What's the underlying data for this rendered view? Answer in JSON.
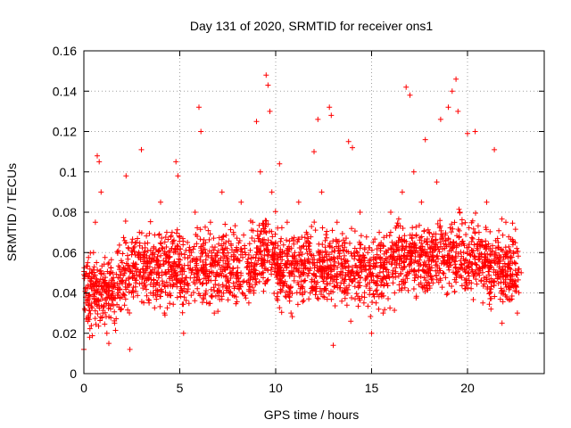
{
  "chart_data": {
    "type": "scatter",
    "title": "Day 131 of 2020, SRMTID for receiver ons1",
    "xlabel": "GPS time / hours",
    "ylabel": "SRMTID / TECUs",
    "xlim": [
      0,
      24
    ],
    "ylim": [
      0,
      0.16
    ],
    "xticks": [
      0,
      5,
      10,
      15,
      20
    ],
    "xtick_labels": [
      "0",
      "5",
      "10",
      "15",
      "20"
    ],
    "yticks": [
      0,
      0.02,
      0.04,
      0.06,
      0.08,
      0.1,
      0.12,
      0.14,
      0.16
    ],
    "ytick_labels": [
      "0",
      "0.02",
      "0.04",
      "0.06",
      "0.08",
      "0.1",
      "0.12",
      "0.14",
      "0.16"
    ],
    "grid": true,
    "marker": "+",
    "series": [
      {
        "name": "SRMTID",
        "color": "#ff0000",
        "points": [
          [
            0.0,
            0.012
          ],
          [
            0.1,
            0.035
          ],
          [
            0.2,
            0.055
          ],
          [
            0.3,
            0.018
          ],
          [
            0.4,
            0.042
          ],
          [
            0.5,
            0.06
          ],
          [
            0.6,
            0.075
          ],
          [
            0.7,
            0.108
          ],
          [
            0.8,
            0.105
          ],
          [
            0.9,
            0.09
          ],
          [
            1.0,
            0.03
          ],
          [
            1.1,
            0.045
          ],
          [
            1.2,
            0.02
          ],
          [
            1.3,
            0.015
          ],
          [
            1.4,
            0.038
          ],
          [
            1.5,
            0.05
          ],
          [
            1.6,
            0.025
          ],
          [
            1.8,
            0.04
          ],
          [
            2.0,
            0.055
          ],
          [
            2.2,
            0.098
          ],
          [
            2.4,
            0.012
          ],
          [
            2.5,
            0.065
          ],
          [
            2.7,
            0.045
          ],
          [
            2.9,
            0.07
          ],
          [
            3.0,
            0.111
          ],
          [
            3.2,
            0.05
          ],
          [
            3.4,
            0.035
          ],
          [
            3.6,
            0.06
          ],
          [
            3.8,
            0.045
          ],
          [
            4.0,
            0.085
          ],
          [
            4.2,
            0.03
          ],
          [
            4.4,
            0.055
          ],
          [
            4.6,
            0.07
          ],
          [
            4.8,
            0.105
          ],
          [
            4.9,
            0.098
          ],
          [
            5.0,
            0.04
          ],
          [
            5.2,
            0.02
          ],
          [
            5.4,
            0.065
          ],
          [
            5.6,
            0.05
          ],
          [
            5.8,
            0.08
          ],
          [
            6.0,
            0.132
          ],
          [
            6.1,
            0.12
          ],
          [
            6.2,
            0.06
          ],
          [
            6.4,
            0.045
          ],
          [
            6.6,
            0.075
          ],
          [
            6.8,
            0.03
          ],
          [
            7.0,
            0.055
          ],
          [
            7.2,
            0.09
          ],
          [
            7.4,
            0.065
          ],
          [
            7.6,
            0.04
          ],
          [
            7.8,
            0.07
          ],
          [
            8.0,
            0.05
          ],
          [
            8.2,
            0.085
          ],
          [
            8.4,
            0.06
          ],
          [
            8.6,
            0.035
          ],
          [
            8.8,
            0.075
          ],
          [
            9.0,
            0.125
          ],
          [
            9.2,
            0.1
          ],
          [
            9.4,
            0.055
          ],
          [
            9.5,
            0.148
          ],
          [
            9.6,
            0.143
          ],
          [
            9.7,
            0.13
          ],
          [
            9.8,
            0.09
          ],
          [
            10.0,
            0.065
          ],
          [
            10.2,
            0.104
          ],
          [
            10.4,
            0.045
          ],
          [
            10.6,
            0.075
          ],
          [
            10.8,
            0.03
          ],
          [
            11.0,
            0.06
          ],
          [
            11.2,
            0.085
          ],
          [
            11.4,
            0.05
          ],
          [
            11.6,
            0.07
          ],
          [
            11.8,
            0.04
          ],
          [
            12.0,
            0.11
          ],
          [
            12.2,
            0.126
          ],
          [
            12.4,
            0.09
          ],
          [
            12.6,
            0.06
          ],
          [
            12.8,
            0.132
          ],
          [
            12.9,
            0.128
          ],
          [
            13.0,
            0.014
          ],
          [
            13.2,
            0.075
          ],
          [
            13.4,
            0.045
          ],
          [
            13.6,
            0.065
          ],
          [
            13.8,
            0.115
          ],
          [
            14.0,
            0.112
          ],
          [
            14.2,
            0.05
          ],
          [
            14.4,
            0.08
          ],
          [
            14.6,
            0.035
          ],
          [
            14.8,
            0.06
          ],
          [
            15.0,
            0.02
          ],
          [
            15.2,
            0.045
          ],
          [
            15.4,
            0.07
          ],
          [
            15.6,
            0.03
          ],
          [
            15.8,
            0.055
          ],
          [
            16.0,
            0.08
          ],
          [
            16.2,
            0.04
          ],
          [
            16.4,
            0.065
          ],
          [
            16.6,
            0.09
          ],
          [
            16.8,
            0.142
          ],
          [
            17.0,
            0.138
          ],
          [
            17.2,
            0.1
          ],
          [
            17.4,
            0.06
          ],
          [
            17.6,
            0.085
          ],
          [
            17.8,
            0.116
          ],
          [
            18.0,
            0.07
          ],
          [
            18.2,
            0.045
          ],
          [
            18.4,
            0.095
          ],
          [
            18.6,
            0.126
          ],
          [
            18.8,
            0.055
          ],
          [
            19.0,
            0.132
          ],
          [
            19.2,
            0.14
          ],
          [
            19.4,
            0.146
          ],
          [
            19.5,
            0.13
          ],
          [
            19.6,
            0.08
          ],
          [
            19.8,
            0.06
          ],
          [
            20.0,
            0.119
          ],
          [
            20.2,
            0.045
          ],
          [
            20.4,
            0.12
          ],
          [
            20.6,
            0.07
          ],
          [
            20.8,
            0.035
          ],
          [
            21.0,
            0.085
          ],
          [
            21.2,
            0.055
          ],
          [
            21.4,
            0.111
          ],
          [
            21.6,
            0.065
          ],
          [
            21.8,
            0.025
          ],
          [
            22.0,
            0.075
          ],
          [
            22.2,
            0.045
          ],
          [
            22.4,
            0.06
          ],
          [
            22.6,
            0.03
          ],
          [
            22.8,
            0.05
          ]
        ],
        "noise_fill": {
          "note": "dense cloud of additional samples (~every 30 s) with typical value ~0.05 ± 0.02"
        }
      }
    ]
  }
}
